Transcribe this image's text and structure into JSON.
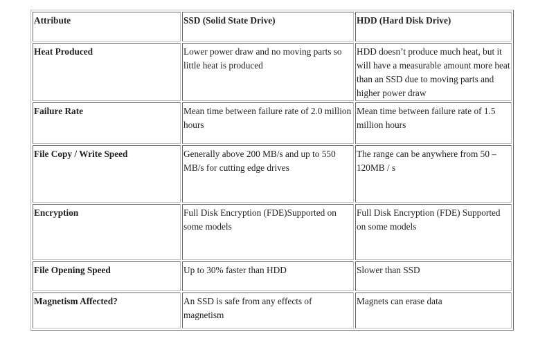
{
  "table": {
    "headers": [
      "Attribute",
      "SSD (Solid State Drive)",
      "HDD (Hard Disk Drive)"
    ],
    "rows": [
      [
        "Heat Produced",
        "Lower power draw and no moving parts so little heat is produced",
        "HDD doesn’t produce much heat, but it will have a measurable amount more heat than an SSD due to moving parts and higher power draw"
      ],
      [
        "Failure Rate",
        "Mean time between failure rate of 2.0 million hours",
        "Mean time between failure rate of 1.5 million hours"
      ],
      [
        "File Copy / Write Speed",
        "Generally above 200 MB/s and up to 550 MB/s for cutting edge drives",
        "The range can be anywhere from 50 – 120MB / s"
      ],
      [
        "Encryption",
        "Full Disk Encryption (FDE)Supported on some models",
        "Full Disk Encryption (FDE) Supported on some models"
      ],
      [
        "File Opening Speed",
        "Up to 30% faster than HDD",
        "Slower than SSD"
      ],
      [
        "Magnetism Affected?",
        "An SSD is safe from any effects of magnetism",
        "Magnets can erase data"
      ]
    ]
  }
}
